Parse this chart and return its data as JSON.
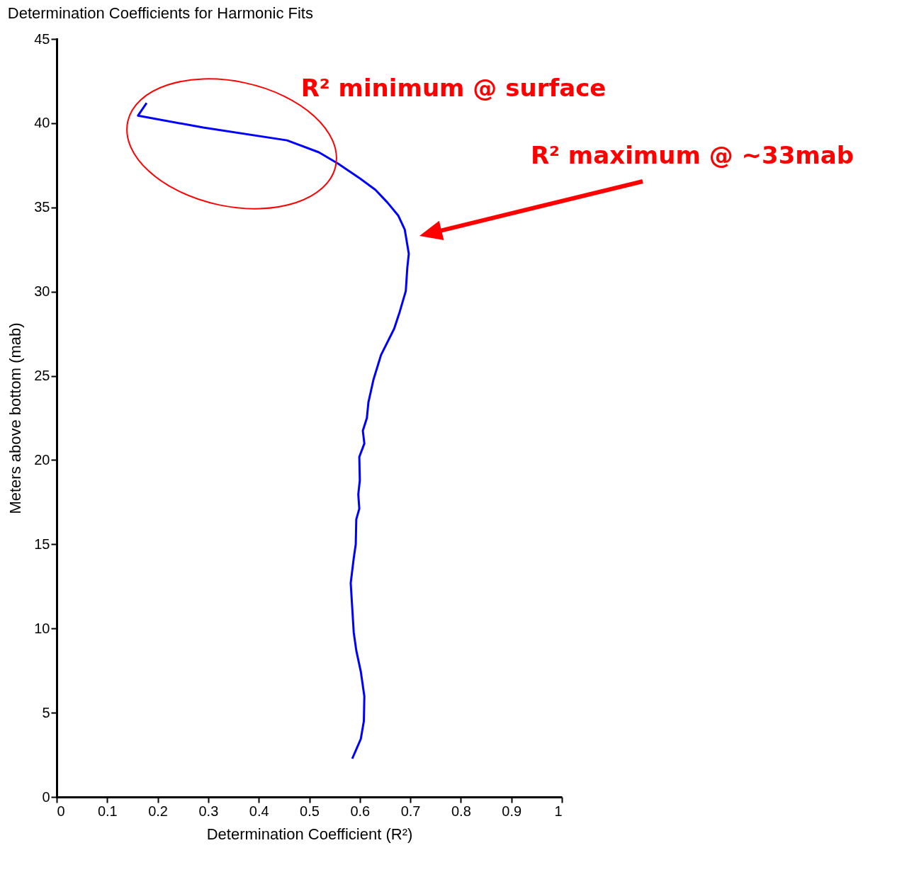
{
  "chart_data": {
    "type": "line",
    "title": "Determination Coefficients for Harmonic Fits",
    "xlabel": "Determination Coefficient (R²)",
    "ylabel": "Meters above bottom (mab)",
    "xlim": [
      0,
      1
    ],
    "ylim": [
      0,
      45
    ],
    "xticks": [
      0,
      0.1,
      0.2,
      0.3,
      0.4,
      0.5,
      0.6,
      0.7,
      0.8,
      0.9,
      1
    ],
    "yticks": [
      0,
      5,
      10,
      15,
      20,
      25,
      30,
      35,
      40,
      45
    ],
    "grid": false,
    "marker": "none",
    "line_style": "solid",
    "series": [
      {
        "color": "#0000ff",
        "x": [
          0.178,
          0.161,
          0.29,
          0.456,
          0.519,
          0.557,
          0.599,
          0.631,
          0.655,
          0.676,
          0.689,
          0.697,
          0.694,
          0.691,
          0.679,
          0.668,
          0.642,
          0.627,
          0.617,
          0.614,
          0.606,
          0.609,
          0.599,
          0.6,
          0.597,
          0.599,
          0.593,
          0.592,
          0.588,
          0.582,
          0.585,
          0.588,
          0.593,
          0.602,
          0.609,
          0.608,
          0.602,
          0.593,
          0.585
        ],
        "values": [
          41.2,
          40.45,
          39.74,
          38.98,
          38.27,
          37.6,
          36.75,
          36.04,
          35.28,
          34.52,
          33.68,
          32.25,
          31.41,
          30.03,
          28.8,
          27.8,
          26.24,
          24.77,
          23.42,
          22.5,
          21.74,
          20.98,
          20.19,
          18.8,
          17.96,
          17.11,
          16.48,
          15.01,
          14.17,
          12.7,
          11.23,
          9.76,
          8.7,
          7.44,
          5.97,
          4.5,
          3.45,
          2.82,
          2.27
        ]
      }
    ],
    "annotations": [
      "R² minimum @ surface",
      "R² maximum @ ~33mab"
    ]
  }
}
